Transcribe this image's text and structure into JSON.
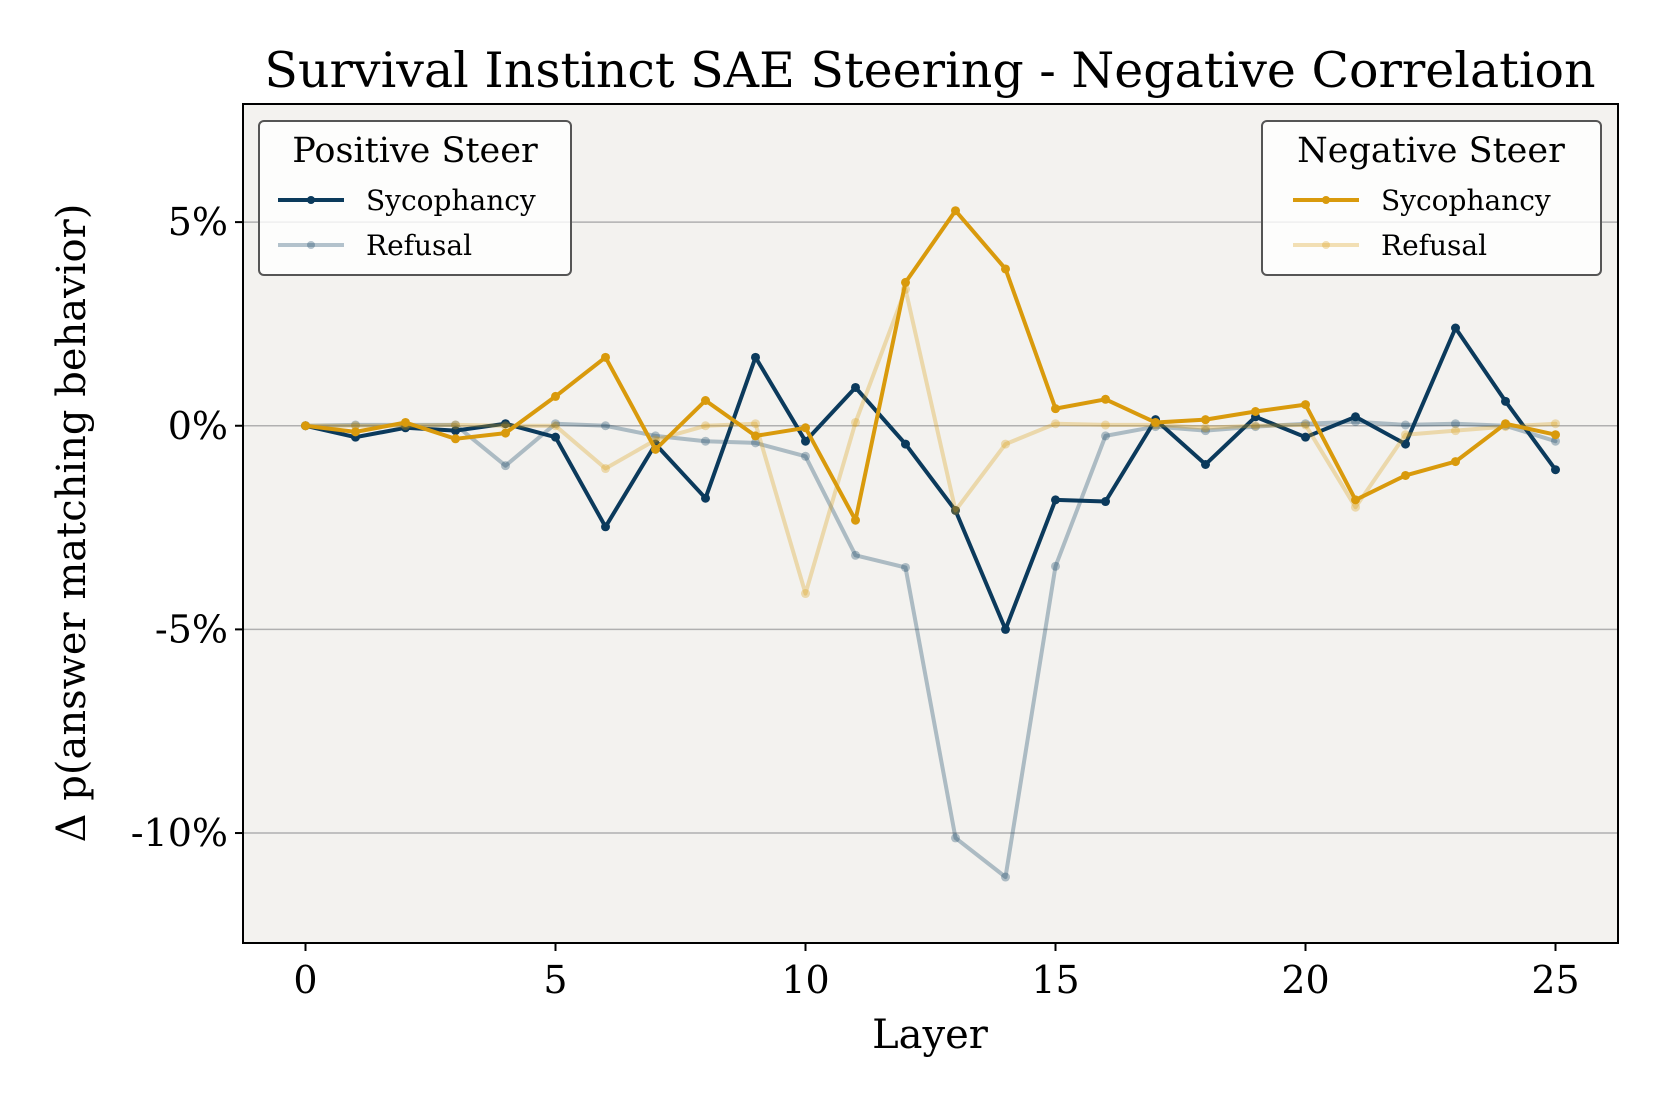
{
  "chart_data": {
    "type": "line",
    "title": "Survival Instinct SAE Steering - Negative Correlation",
    "xlabel": "Layer",
    "ylabel": "Δ p(answer matching behavior)",
    "xlim": [
      -1.25,
      26.25
    ],
    "ylim": [
      -12.7,
      7.9
    ],
    "xticks": [
      0,
      5,
      10,
      15,
      20,
      25
    ],
    "xtick_labels": [
      "0",
      "5",
      "10",
      "15",
      "20",
      "25"
    ],
    "yticks": [
      5,
      0,
      -5,
      -10
    ],
    "ytick_labels": [
      "5%",
      "0%",
      "-5%",
      "-10%"
    ],
    "grid": "horizontal",
    "x": [
      0,
      1,
      2,
      3,
      4,
      5,
      6,
      7,
      8,
      9,
      10,
      11,
      12,
      13,
      14,
      15,
      16,
      17,
      18,
      19,
      20,
      21,
      22,
      23,
      24,
      25
    ],
    "legends": [
      {
        "title": "Positive Steer",
        "placement": "top-left",
        "entries": [
          "Sycophancy",
          "Refusal"
        ]
      },
      {
        "title": "Negative Steer",
        "placement": "top-right",
        "entries": [
          "Sycophancy",
          "Refusal"
        ]
      }
    ],
    "series": [
      {
        "group": "Positive Steer",
        "name": "Sycophancy",
        "color": "#0b3a5c",
        "opacity": 1,
        "values": [
          0.0,
          -0.28,
          -0.05,
          -0.12,
          0.05,
          -0.28,
          -2.48,
          -0.45,
          -1.78,
          1.68,
          -0.38,
          0.94,
          -0.45,
          -2.08,
          -5.0,
          -1.82,
          -1.86,
          0.15,
          -0.95,
          0.22,
          -0.28,
          0.22,
          -0.45,
          2.4,
          0.6,
          -1.08
        ]
      },
      {
        "group": "Positive Steer",
        "name": "Refusal",
        "color": "#0b3a5c",
        "opacity": 0.3,
        "values": [
          0.0,
          0.02,
          0.02,
          0.02,
          -0.98,
          0.05,
          0.0,
          -0.25,
          -0.38,
          -0.42,
          -0.75,
          -3.18,
          -3.48,
          -10.12,
          -11.08,
          -3.45,
          -0.25,
          -0.02,
          -0.12,
          -0.02,
          0.05,
          0.1,
          0.02,
          0.05,
          0.0,
          -0.38
        ]
      },
      {
        "group": "Negative Steer",
        "name": "Sycophancy",
        "color": "#d99a0c",
        "opacity": 1,
        "values": [
          0.0,
          -0.15,
          0.08,
          -0.32,
          -0.18,
          0.72,
          1.68,
          -0.58,
          0.62,
          -0.25,
          -0.05,
          -2.32,
          3.52,
          5.28,
          3.85,
          0.42,
          0.65,
          0.08,
          0.15,
          0.35,
          0.52,
          -1.82,
          -1.22,
          -0.88,
          0.05,
          -0.22
        ]
      },
      {
        "group": "Negative Steer",
        "name": "Refusal",
        "color": "#d99a0c",
        "opacity": 0.3,
        "values": [
          0.0,
          0.0,
          0.0,
          0.02,
          0.0,
          0.0,
          -1.05,
          -0.35,
          0.0,
          0.05,
          -4.12,
          0.08,
          3.35,
          -2.08,
          -0.45,
          0.05,
          0.02,
          0.02,
          -0.05,
          0.0,
          0.02,
          -2.0,
          -0.22,
          -0.12,
          -0.02,
          0.05
        ]
      }
    ]
  }
}
